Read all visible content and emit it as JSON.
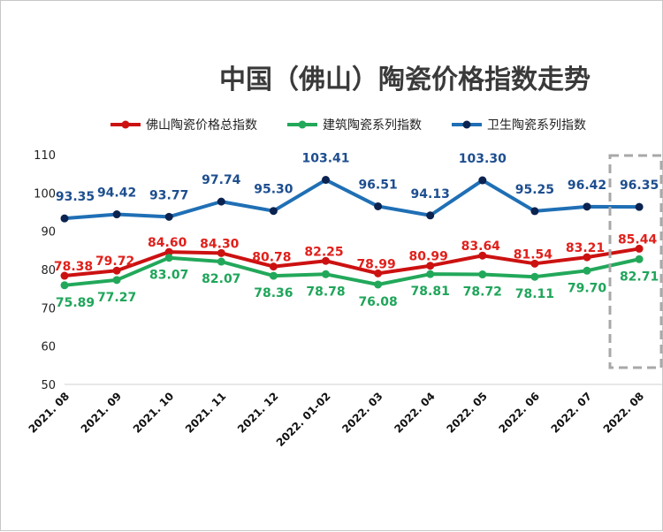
{
  "chart_data": {
    "type": "line",
    "title": "中国（佛山）陶瓷价格指数走势",
    "categories": [
      "2021.08",
      "2021.09",
      "2021.10",
      "2021.11",
      "2021.12",
      "2022.01-02",
      "2022.03",
      "2022.04",
      "2022.05",
      "2022.06",
      "2022.07",
      "2022.08"
    ],
    "series": [
      {
        "name": "佛山陶瓷价格总指数",
        "color": "#cc1111",
        "label_color": "#e0201b",
        "values": [
          78.38,
          79.72,
          84.6,
          84.3,
          80.78,
          82.25,
          78.99,
          80.99,
          83.64,
          81.54,
          83.21,
          85.44
        ]
      },
      {
        "name": "建筑陶瓷系列指数",
        "color": "#22a85a",
        "label_color": "#1fa55a",
        "values": [
          75.89,
          77.27,
          83.07,
          82.07,
          78.36,
          78.78,
          76.08,
          78.81,
          78.72,
          78.11,
          79.7,
          82.71
        ]
      },
      {
        "name": "卫生陶瓷系列指数",
        "color": "#1f6fb5",
        "label_color": "#1d4e8f",
        "values": [
          93.35,
          94.42,
          93.77,
          97.74,
          95.3,
          103.41,
          96.51,
          94.13,
          103.3,
          95.25,
          96.42,
          96.35
        ]
      }
    ],
    "data_labels": [
      [
        "78.38",
        "79.72",
        "84.60",
        "84.30",
        "80.78",
        "82.25",
        "78.99",
        "80.99",
        "83.64",
        "81.54",
        "83.21",
        "85.44"
      ],
      [
        "75.89",
        "77.27",
        "83.07",
        "82.07",
        "78.36",
        "78.78",
        "76.08",
        "78.81",
        "78.72",
        "78.11",
        "79.70",
        "82.71"
      ],
      [
        "93.35",
        "94.42",
        "93.77",
        "97.74",
        "95.30",
        "103.41",
        "96.51",
        "94.13",
        "103.30",
        "95.25",
        "96.42",
        "96.35"
      ]
    ],
    "y_ticks": [
      "50",
      "60",
      "70",
      "80",
      "90",
      "100",
      "110"
    ],
    "x_ticks": [
      "2021. 08",
      "2021. 09",
      "2021. 10",
      "2021. 11",
      "2021. 12",
      "2022. 01-02",
      "2022. 03",
      "2022. 04",
      "2022. 05",
      "2022. 06",
      "2022. 07",
      "2022. 08"
    ],
    "ylim": [
      50,
      110
    ],
    "grid": false,
    "legend_position": "top",
    "highlight": "dashed box around last category"
  }
}
